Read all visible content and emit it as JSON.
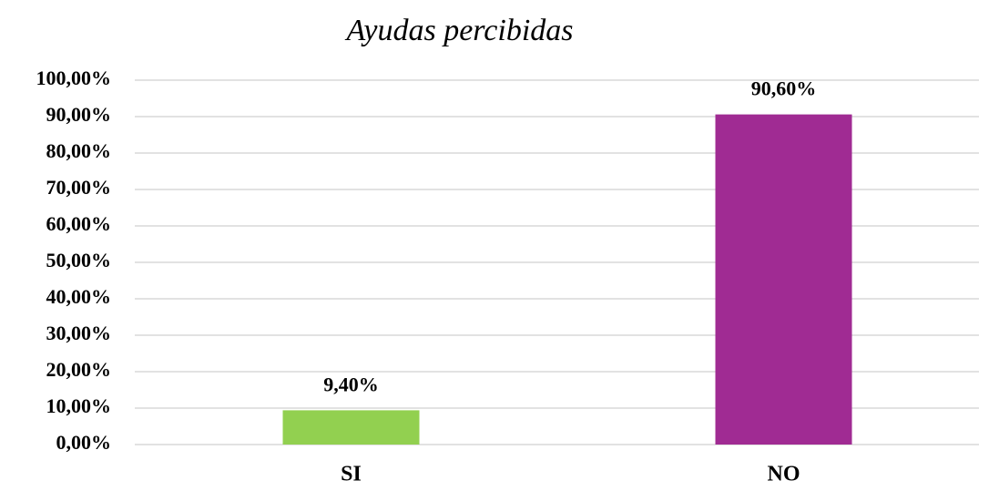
{
  "chart_data": {
    "type": "bar",
    "title": "Ayudas percibidas",
    "categories": [
      "SI",
      "NO"
    ],
    "values": [
      9.4,
      90.6
    ],
    "value_labels": [
      "9,40%",
      "90,60%"
    ],
    "colors": [
      "#92d050",
      "#a02b93"
    ],
    "ylim": [
      0,
      100
    ],
    "yticks": [
      {
        "value": 0,
        "label": "0,00%"
      },
      {
        "value": 10,
        "label": "10,00%"
      },
      {
        "value": 20,
        "label": "20,00%"
      },
      {
        "value": 30,
        "label": "30,00%"
      },
      {
        "value": 40,
        "label": "40,00%"
      },
      {
        "value": 50,
        "label": "50,00%"
      },
      {
        "value": 60,
        "label": "60,00%"
      },
      {
        "value": 70,
        "label": "70,00%"
      },
      {
        "value": 80,
        "label": "80,00%"
      },
      {
        "value": 90,
        "label": "90,00%"
      },
      {
        "value": 100,
        "label": "100,00%"
      }
    ],
    "grid": true
  }
}
